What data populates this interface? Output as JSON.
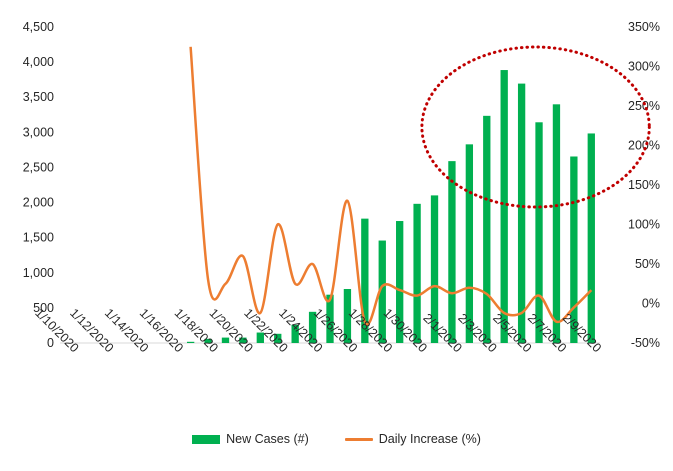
{
  "colors": {
    "bar": "#00b050",
    "line": "#ed7d31",
    "annotation": "#c00000",
    "text": "#262626",
    "axis": "#d9d9d9"
  },
  "legend": {
    "bar_label": "New Cases (#)",
    "line_label": "Daily Increase (%)",
    "position": "bottom"
  },
  "chart_data": {
    "type": "bar",
    "title": "",
    "xlabel": "",
    "ylabel": "",
    "grid": false,
    "categories": [
      "1/10/2020",
      "1/11/2020",
      "1/12/2020",
      "1/13/2020",
      "1/14/2020",
      "1/15/2020",
      "1/16/2020",
      "1/17/2020",
      "1/18/2020",
      "1/19/2020",
      "1/20/2020",
      "1/21/2020",
      "1/22/2020",
      "1/23/2020",
      "1/24/2020",
      "1/25/2020",
      "1/26/2020",
      "1/27/2020",
      "1/28/2020",
      "1/29/2020",
      "1/30/2020",
      "1/31/2020",
      "2/1/2020",
      "2/2/2020",
      "2/3/2020",
      "2/4/2020",
      "2/5/2020",
      "2/6/2020",
      "2/7/2020",
      "2/8/2020",
      "2/9/2020"
    ],
    "x_tick_labels": [
      "1/10/2020",
      "1/12/2020",
      "1/14/2020",
      "1/16/2020",
      "1/18/2020",
      "1/20/2020",
      "1/22/2020",
      "1/24/2020",
      "1/26/2020",
      "1/28/2020",
      "1/30/2020",
      "2/1/2020",
      "2/3/2020",
      "2/5/2020",
      "2/7/2020",
      "2/9/2020"
    ],
    "y_left": {
      "ylim": [
        0,
        4500
      ],
      "ticks": [
        "0",
        "500",
        "1,000",
        "1,500",
        "2,000",
        "2,500",
        "3,000",
        "3,500",
        "4,000",
        "4,500"
      ]
    },
    "y_right": {
      "ylim": [
        -50,
        350
      ],
      "ticks": [
        "-50%",
        "0%",
        "50%",
        "100%",
        "150%",
        "200%",
        "250%",
        "300%",
        "350%"
      ]
    },
    "series": [
      {
        "name": "New Cases (#)",
        "type": "bar",
        "axis": "left",
        "values": [
          0,
          0,
          0,
          0,
          0,
          0,
          0,
          17,
          59,
          77,
          77,
          149,
          131,
          259,
          444,
          688,
          769,
          1771,
          1459,
          1737,
          1982,
          2102,
          2590,
          2829,
          3235,
          3887,
          3694,
          3143,
          3399,
          2656,
          2984
        ]
      },
      {
        "name": "Daily Increase (%)",
        "type": "line",
        "axis": "right",
        "values": [
          null,
          null,
          null,
          null,
          null,
          null,
          null,
          325,
          30,
          25,
          60,
          -12,
          100,
          25,
          50,
          5,
          130,
          -23,
          22,
          17,
          10,
          22,
          13,
          20,
          12,
          -12,
          -12,
          10,
          -23,
          -5,
          17
        ]
      }
    ],
    "annotations": [
      {
        "type": "dotted-ellipse",
        "color": "#c00000",
        "around_categories": [
          "2/1/2020",
          "2/9/2020"
        ]
      }
    ]
  }
}
